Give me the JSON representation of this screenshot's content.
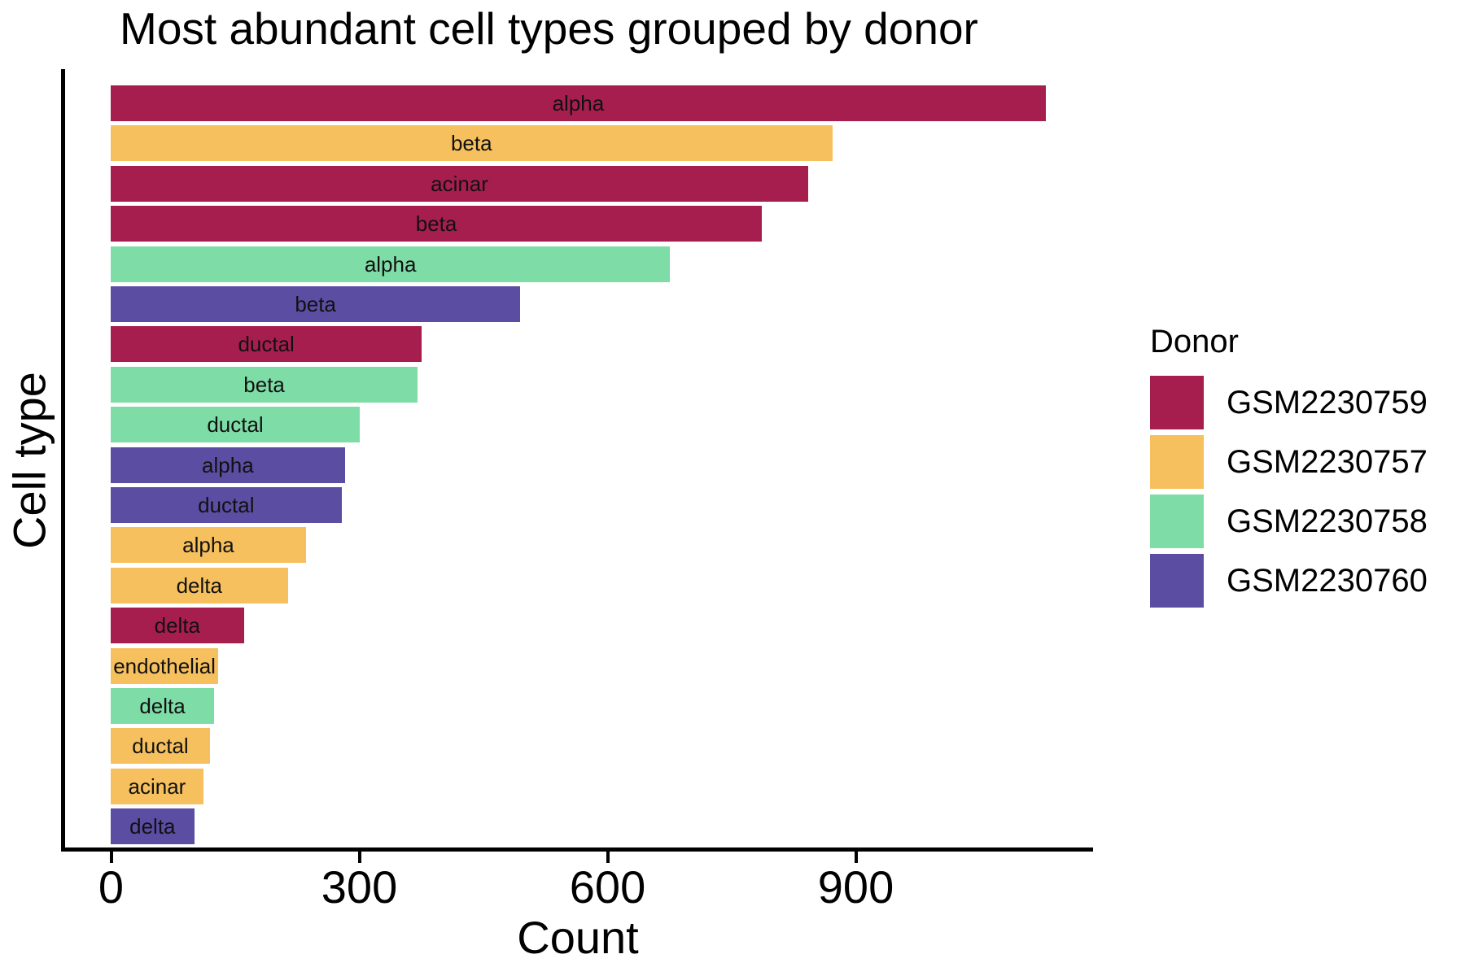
{
  "title": "Most abundant cell types grouped by donor",
  "x_axis": {
    "label": "Count",
    "tick_labels": [
      "0",
      "300",
      "600",
      "900"
    ]
  },
  "y_axis": {
    "label": "Cell type"
  },
  "legend": {
    "title": "Donor",
    "position": "right",
    "items": [
      {
        "label": "GSM2230759",
        "color": "#A61E4D"
      },
      {
        "label": "GSM2230757",
        "color": "#F6C05E"
      },
      {
        "label": "GSM2230758",
        "color": "#7EDCA6"
      },
      {
        "label": "GSM2230760",
        "color": "#5B4DA2"
      }
    ]
  },
  "chart_data": {
    "type": "bar",
    "orientation": "horizontal",
    "title": "Most abundant cell types grouped by donor",
    "xlabel": "Count",
    "ylabel": "Cell type",
    "xlim": [
      0,
      1187
    ],
    "x_ticks": [
      0,
      300,
      600,
      900
    ],
    "grid": false,
    "legend_title": "Donor",
    "legend_position": "right",
    "bars": [
      {
        "cell_type": "alpha",
        "donor": "GSM2230759",
        "count": 1130
      },
      {
        "cell_type": "beta",
        "donor": "GSM2230757",
        "count": 872
      },
      {
        "cell_type": "acinar",
        "donor": "GSM2230759",
        "count": 843
      },
      {
        "cell_type": "beta",
        "donor": "GSM2230759",
        "count": 787
      },
      {
        "cell_type": "alpha",
        "donor": "GSM2230758",
        "count": 676
      },
      {
        "cell_type": "beta",
        "donor": "GSM2230760",
        "count": 495
      },
      {
        "cell_type": "ductal",
        "donor": "GSM2230759",
        "count": 376
      },
      {
        "cell_type": "beta",
        "donor": "GSM2230758",
        "count": 371
      },
      {
        "cell_type": "ductal",
        "donor": "GSM2230758",
        "count": 301
      },
      {
        "cell_type": "alpha",
        "donor": "GSM2230760",
        "count": 283
      },
      {
        "cell_type": "ductal",
        "donor": "GSM2230760",
        "count": 279
      },
      {
        "cell_type": "alpha",
        "donor": "GSM2230757",
        "count": 236
      },
      {
        "cell_type": "delta",
        "donor": "GSM2230757",
        "count": 214
      },
      {
        "cell_type": "delta",
        "donor": "GSM2230759",
        "count": 161
      },
      {
        "cell_type": "endothelial",
        "donor": "GSM2230757",
        "count": 130
      },
      {
        "cell_type": "delta",
        "donor": "GSM2230758",
        "count": 125
      },
      {
        "cell_type": "ductal",
        "donor": "GSM2230757",
        "count": 120
      },
      {
        "cell_type": "acinar",
        "donor": "GSM2230757",
        "count": 112
      },
      {
        "cell_type": "delta",
        "donor": "GSM2230760",
        "count": 101
      }
    ]
  }
}
